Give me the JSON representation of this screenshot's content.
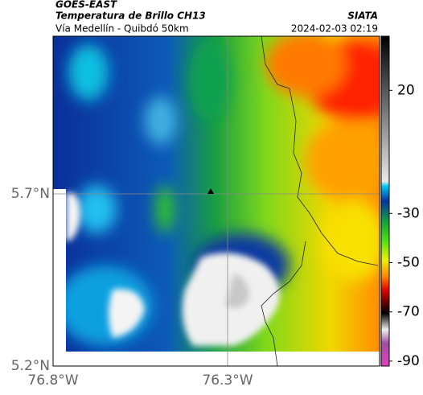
{
  "header": {
    "satellite": "GOES-EAST",
    "product": "Temperatura de Brillo CH13",
    "region": "Vía Medellín - Quibdó 50km",
    "source": "SIATA",
    "timestamp": "2024-02-03 02:19"
  },
  "axes": {
    "lat_labels": [
      "5.7°N",
      "5.2°N"
    ],
    "lon_labels": [
      "76.8°W",
      "76.3°W"
    ]
  },
  "colorbar": {
    "lim": [
      -92,
      42
    ],
    "ticks": [
      20,
      -30,
      -50,
      -70,
      -90
    ]
  }
}
